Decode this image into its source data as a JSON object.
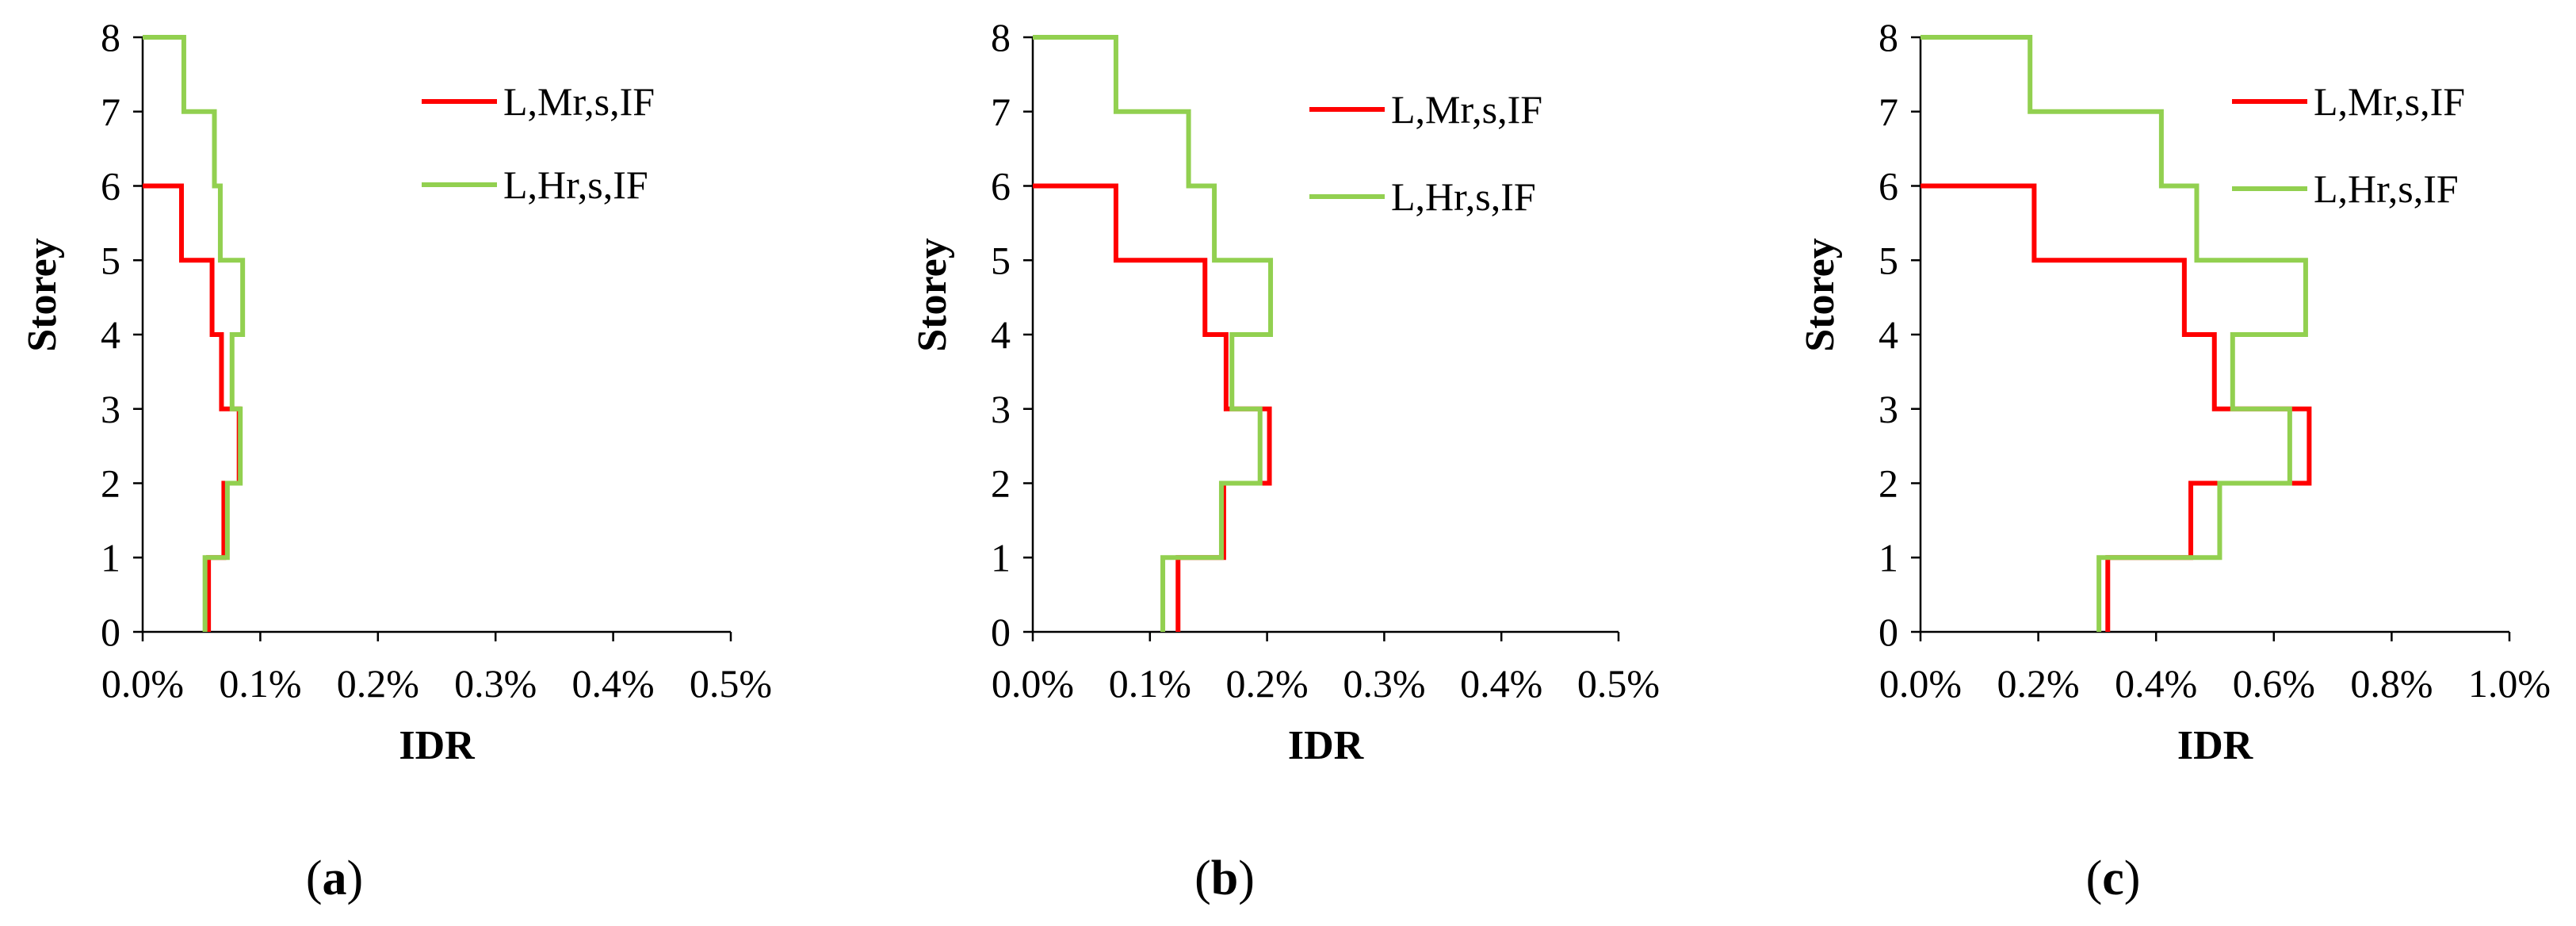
{
  "chart_data": [
    {
      "type": "line",
      "panel_label": {
        "open": "(",
        "letter": "a",
        "close": ")"
      },
      "xlabel": "IDR",
      "ylabel": "Storey",
      "xlim": [
        0,
        0.5
      ],
      "ylim": [
        0,
        8
      ],
      "x_ticks": [
        0,
        0.1,
        0.2,
        0.3,
        0.4,
        0.5
      ],
      "x_tick_labels": [
        "0.0%",
        "0.1%",
        "0.2%",
        "0.3%",
        "0.4%",
        "0.5%"
      ],
      "y_ticks": [
        0,
        1,
        2,
        3,
        4,
        5,
        6,
        7,
        8
      ],
      "y_tick_labels": [
        "0",
        "1",
        "2",
        "3",
        "4",
        "5",
        "6",
        "7",
        "8"
      ],
      "legend_position": "top-right",
      "series": [
        {
          "name": "L,Mr,s,IF",
          "color": "#ff0000",
          "storeys": [
            1,
            2,
            3,
            4,
            5,
            6
          ],
          "values": [
            0.056,
            0.069,
            0.082,
            0.067,
            0.059,
            0.033
          ]
        },
        {
          "name": "L,Hr,s,IF",
          "color": "#92d050",
          "storeys": [
            1,
            2,
            3,
            4,
            5,
            6,
            7,
            8
          ],
          "values": [
            0.053,
            0.072,
            0.083,
            0.076,
            0.085,
            0.066,
            0.061,
            0.035
          ]
        }
      ]
    },
    {
      "type": "line",
      "panel_label": {
        "open": "(",
        "letter": "b",
        "close": ")"
      },
      "xlabel": "IDR",
      "ylabel": "Storey",
      "xlim": [
        0,
        0.5
      ],
      "ylim": [
        0,
        8
      ],
      "x_ticks": [
        0,
        0.1,
        0.2,
        0.3,
        0.4,
        0.5
      ],
      "x_tick_labels": [
        "0.0%",
        "0.1%",
        "0.2%",
        "0.3%",
        "0.4%",
        "0.5%"
      ],
      "y_ticks": [
        0,
        1,
        2,
        3,
        4,
        5,
        6,
        7,
        8
      ],
      "y_tick_labels": [
        "0",
        "1",
        "2",
        "3",
        "4",
        "5",
        "6",
        "7",
        "8"
      ],
      "legend_position": "top-right",
      "series": [
        {
          "name": "L,Mr,s,IF",
          "color": "#ff0000",
          "storeys": [
            1,
            2,
            3,
            4,
            5,
            6
          ],
          "values": [
            0.124,
            0.163,
            0.202,
            0.165,
            0.147,
            0.071
          ]
        },
        {
          "name": "L,Hr,s,IF",
          "color": "#92d050",
          "storeys": [
            1,
            2,
            3,
            4,
            5,
            6,
            7,
            8
          ],
          "values": [
            0.111,
            0.161,
            0.194,
            0.17,
            0.203,
            0.155,
            0.133,
            0.071
          ]
        }
      ]
    },
    {
      "type": "line",
      "panel_label": {
        "open": "(",
        "letter": "c",
        "close": ")"
      },
      "xlabel": "IDR",
      "ylabel": "Storey",
      "xlim": [
        0,
        1.0
      ],
      "ylim": [
        0,
        8
      ],
      "x_ticks": [
        0,
        0.2,
        0.4,
        0.6,
        0.8,
        1.0
      ],
      "x_tick_labels": [
        "0.0%",
        "0.2%",
        "0.4%",
        "0.6%",
        "0.8%",
        "1.0%"
      ],
      "y_ticks": [
        0,
        1,
        2,
        3,
        4,
        5,
        6,
        7,
        8
      ],
      "y_tick_labels": [
        "0",
        "1",
        "2",
        "3",
        "4",
        "5",
        "6",
        "7",
        "8"
      ],
      "legend_position": "top-right",
      "series": [
        {
          "name": "L,Mr,s,IF",
          "color": "#ff0000",
          "storeys": [
            1,
            2,
            3,
            4,
            5,
            6
          ],
          "values": [
            0.318,
            0.459,
            0.66,
            0.499,
            0.448,
            0.193
          ]
        },
        {
          "name": "L,Hr,s,IF",
          "color": "#92d050",
          "storeys": [
            1,
            2,
            3,
            4,
            5,
            6,
            7,
            8
          ],
          "values": [
            0.303,
            0.508,
            0.627,
            0.53,
            0.654,
            0.469,
            0.409,
            0.186
          ]
        }
      ]
    }
  ]
}
